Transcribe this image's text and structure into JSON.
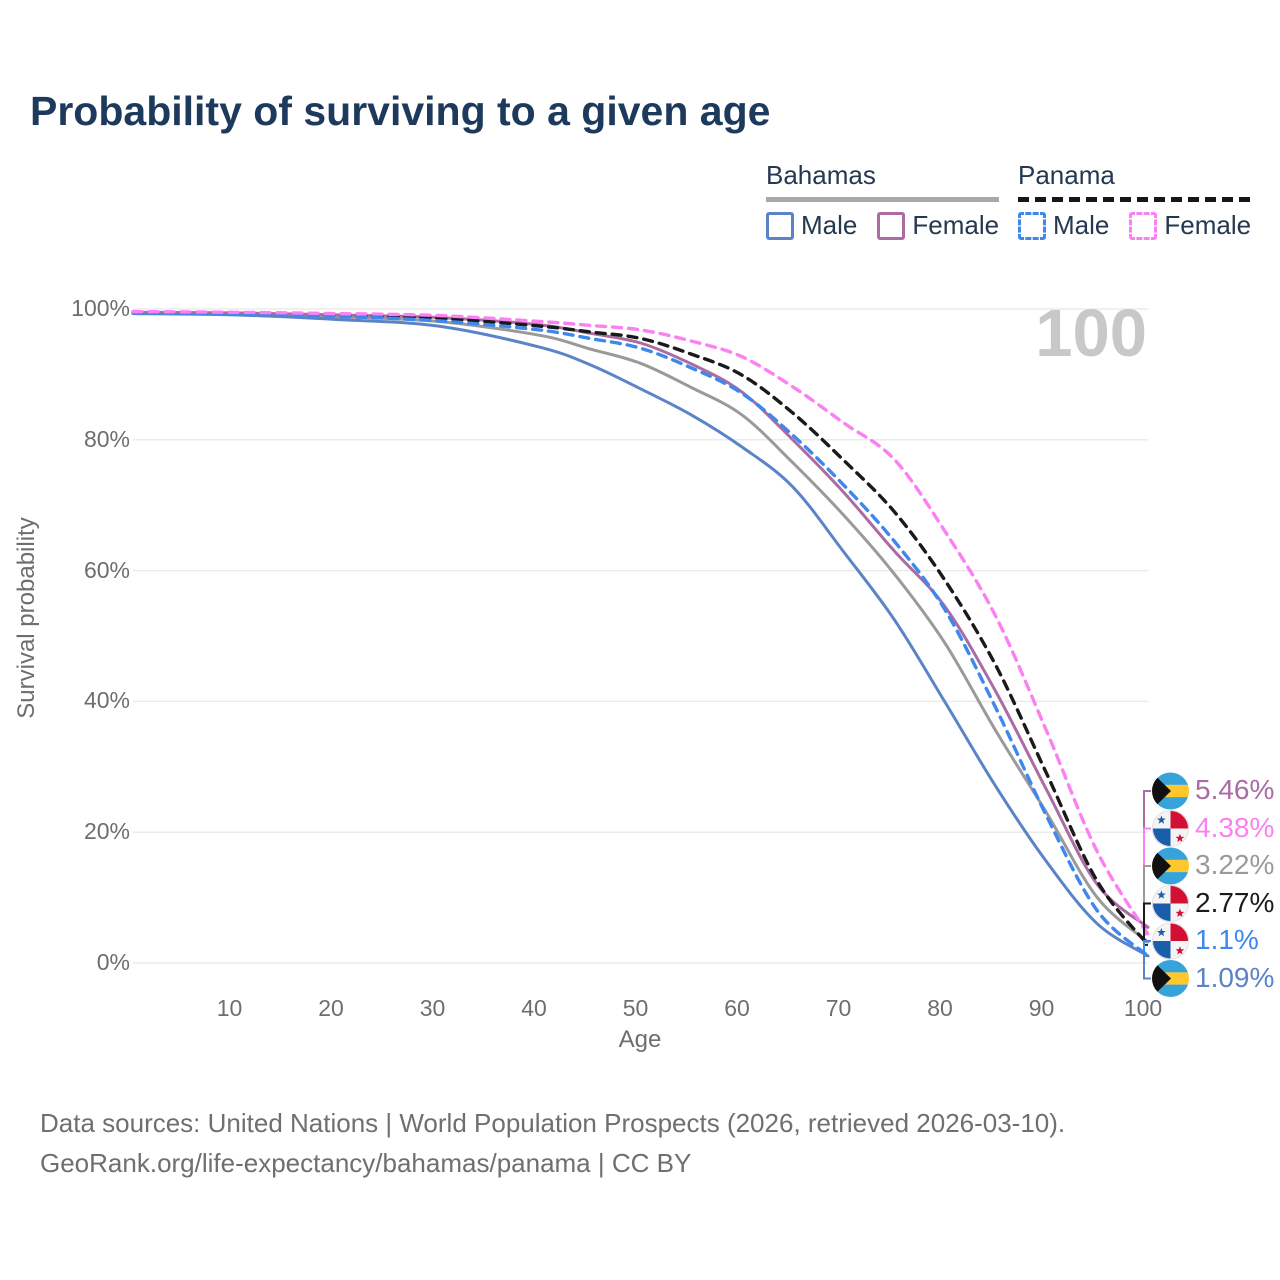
{
  "title": "Probability of surviving to a given age",
  "watermark": "100",
  "legend": {
    "groups": [
      {
        "label": "Bahamas",
        "line_style": "solid",
        "underline_color": "#a8a8a8",
        "items": [
          {
            "label": "Male",
            "color": "#5b84c8"
          },
          {
            "label": "Female",
            "color": "#aa6ca3"
          }
        ]
      },
      {
        "label": "Panama",
        "line_style": "dashed",
        "underline_color": "#161616",
        "items": [
          {
            "label": "Male",
            "color": "#3d87ee"
          },
          {
            "label": "Female",
            "color": "#fb80f2"
          }
        ]
      }
    ]
  },
  "chart_data": {
    "type": "line",
    "title": "Probability of surviving to a given age",
    "xlabel": "Age",
    "ylabel": "Survival probability",
    "xlim": [
      0,
      100
    ],
    "ylim": [
      0,
      100
    ],
    "grid": "horizontal",
    "legend_position": "top-right",
    "x_ticks": [
      10,
      20,
      30,
      40,
      50,
      60,
      70,
      80,
      90,
      100
    ],
    "y_ticks_values": [
      0,
      20,
      40,
      60,
      80,
      100
    ],
    "y_ticks_labels": [
      "0%",
      "20%",
      "40%",
      "60%",
      "80%",
      "100%"
    ],
    "x": [
      0,
      10,
      20,
      30,
      40,
      45,
      50,
      55,
      60,
      65,
      70,
      75,
      80,
      85,
      90,
      95,
      100
    ],
    "series": [
      {
        "name": "Bahamas Male",
        "country": "Bahamas",
        "sex": "Male",
        "flag": "bahamas",
        "color": "#5b84c8",
        "dash": false,
        "end_label": "1.09%",
        "values": [
          99.3,
          99.1,
          98.4,
          97.4,
          94.2,
          91.5,
          87.8,
          83.8,
          78.9,
          72.8,
          62.9,
          52.5,
          39.9,
          27.0,
          15.5,
          6.0,
          1.09
        ]
      },
      {
        "name": "Bahamas Both sexes",
        "country": "Bahamas",
        "sex": "Both sexes",
        "flag": "bahamas",
        "color": "#9a9a9a",
        "dash": false,
        "end_label": "3.22%",
        "values": [
          99.4,
          99.2,
          98.8,
          98.1,
          96.0,
          93.9,
          91.7,
          88.0,
          83.8,
          76.5,
          68.5,
          59.5,
          48.9,
          35.5,
          23.0,
          10.0,
          3.22
        ]
      },
      {
        "name": "Bahamas Female",
        "country": "Bahamas",
        "sex": "Female",
        "flag": "bahamas",
        "color": "#aa6ca3",
        "dash": false,
        "end_label": "5.46%",
        "values": [
          99.5,
          99.4,
          99.1,
          98.7,
          97.6,
          96.3,
          94.8,
          91.6,
          87.3,
          80.0,
          72.0,
          63.0,
          54.5,
          41.5,
          26.5,
          12.0,
          5.46
        ]
      },
      {
        "name": "Panama Male",
        "country": "Panama",
        "sex": "Male",
        "flag": "panama",
        "color": "#3d87ee",
        "dash": true,
        "end_label": "1.1%",
        "values": [
          99.4,
          99.3,
          98.9,
          98.2,
          96.8,
          95.5,
          94.0,
          91.0,
          87.1,
          80.7,
          73.1,
          64.5,
          54.0,
          39.0,
          22.5,
          8.0,
          1.1
        ]
      },
      {
        "name": "Panama Both sexes",
        "country": "Panama",
        "sex": "Both sexes",
        "flag": "panama",
        "color": "#1a1a1a",
        "dash": true,
        "end_label": "2.77%",
        "values": [
          99.5,
          99.4,
          99.1,
          98.6,
          97.4,
          96.5,
          95.5,
          93.1,
          89.9,
          84.1,
          76.9,
          69.0,
          58.5,
          45.5,
          29.0,
          12.5,
          2.77
        ]
      },
      {
        "name": "Panama Female",
        "country": "Panama",
        "sex": "Female",
        "flag": "panama",
        "color": "#fb80f2",
        "dash": true,
        "end_label": "4.38%",
        "values": [
          99.6,
          99.5,
          99.3,
          99.0,
          98.1,
          97.5,
          96.8,
          95.1,
          92.7,
          88.1,
          82.6,
          77.0,
          66.0,
          53.0,
          35.5,
          17.0,
          4.38
        ]
      }
    ],
    "end_labels_top_to_bottom": [
      {
        "series_name": "Bahamas Female",
        "label": "5.46%"
      },
      {
        "series_name": "Panama Female",
        "label": "4.38%"
      },
      {
        "series_name": "Bahamas Both sexes",
        "label": "3.22%"
      },
      {
        "series_name": "Panama Both sexes",
        "label": "2.77%"
      },
      {
        "series_name": "Panama Male",
        "label": "1.1%"
      },
      {
        "series_name": "Bahamas Male",
        "label": "1.09%"
      }
    ]
  },
  "footer": {
    "line1": "Data sources: United Nations | World Population Prospects (2026, retrieved 2026-03-10).",
    "line2": "GeoRank.org/life-expectancy/bahamas/panama | CC BY"
  }
}
